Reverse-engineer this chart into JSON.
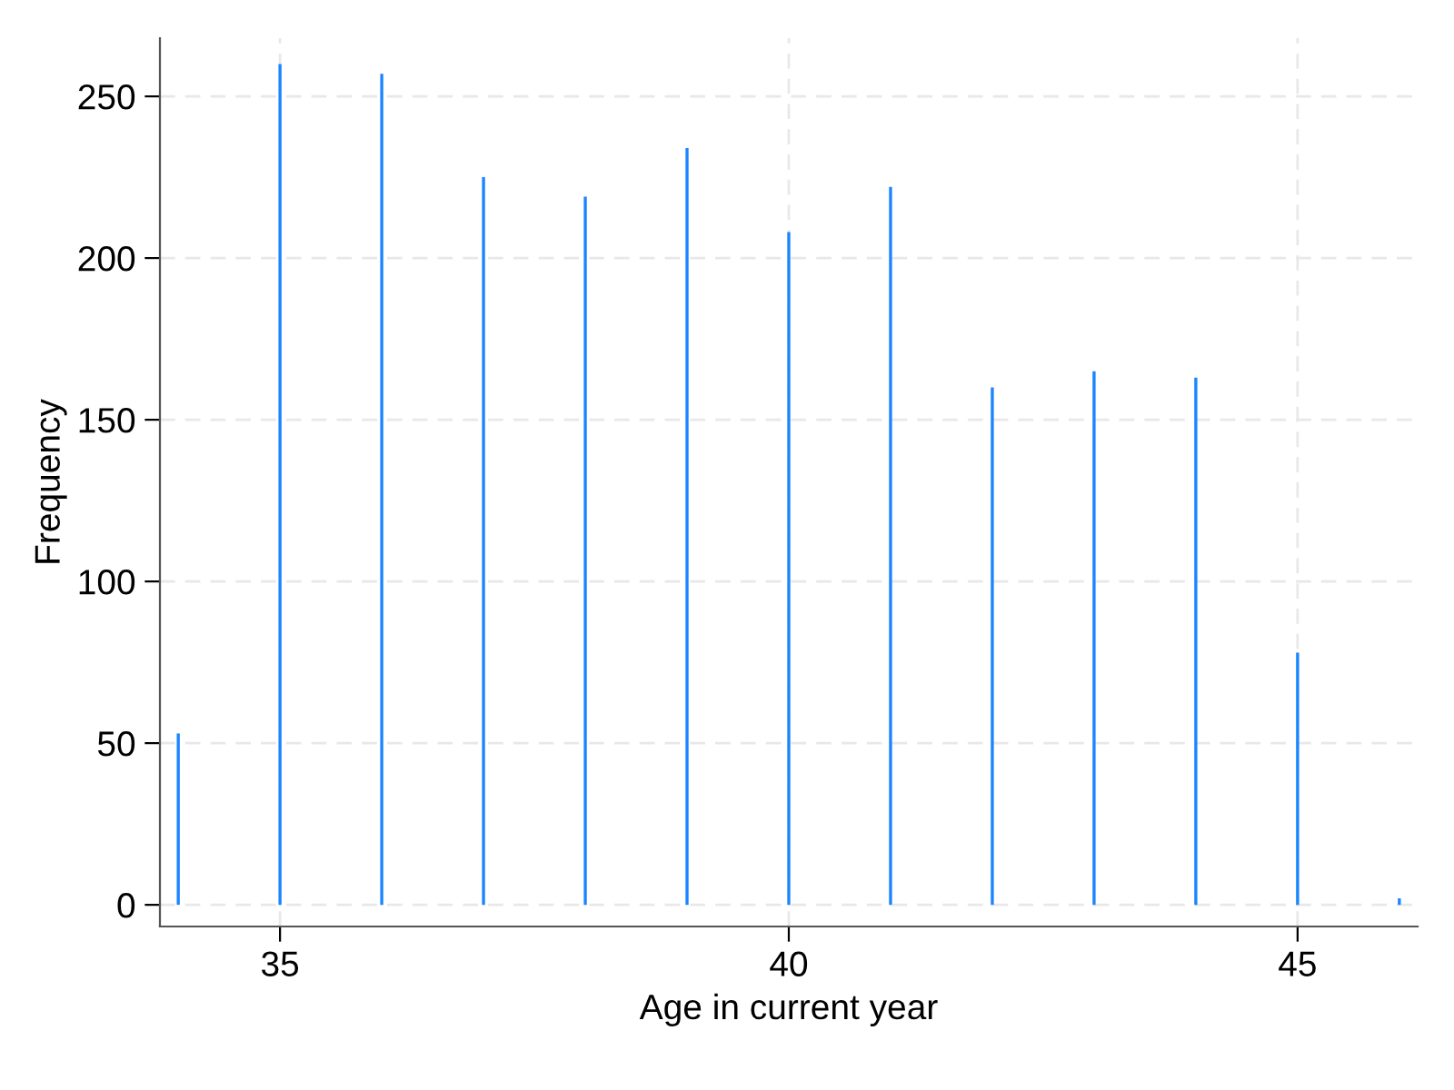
{
  "chart_data": {
    "type": "bar",
    "xlabel": "Age in current year",
    "ylabel": "Frequency",
    "x": [
      34,
      35,
      36,
      37,
      38,
      39,
      40,
      41,
      42,
      43,
      44,
      45,
      46
    ],
    "values": [
      53,
      260,
      257,
      225,
      219,
      234,
      208,
      222,
      160,
      165,
      163,
      78,
      2
    ],
    "color": "#1a85ff",
    "xlim": [
      33.82,
      46.18
    ],
    "xticks": [
      35,
      40,
      45
    ],
    "ylim": [
      -6.7,
      268
    ],
    "yticks": [
      0,
      50,
      100,
      150,
      200,
      250
    ],
    "grid": true
  }
}
